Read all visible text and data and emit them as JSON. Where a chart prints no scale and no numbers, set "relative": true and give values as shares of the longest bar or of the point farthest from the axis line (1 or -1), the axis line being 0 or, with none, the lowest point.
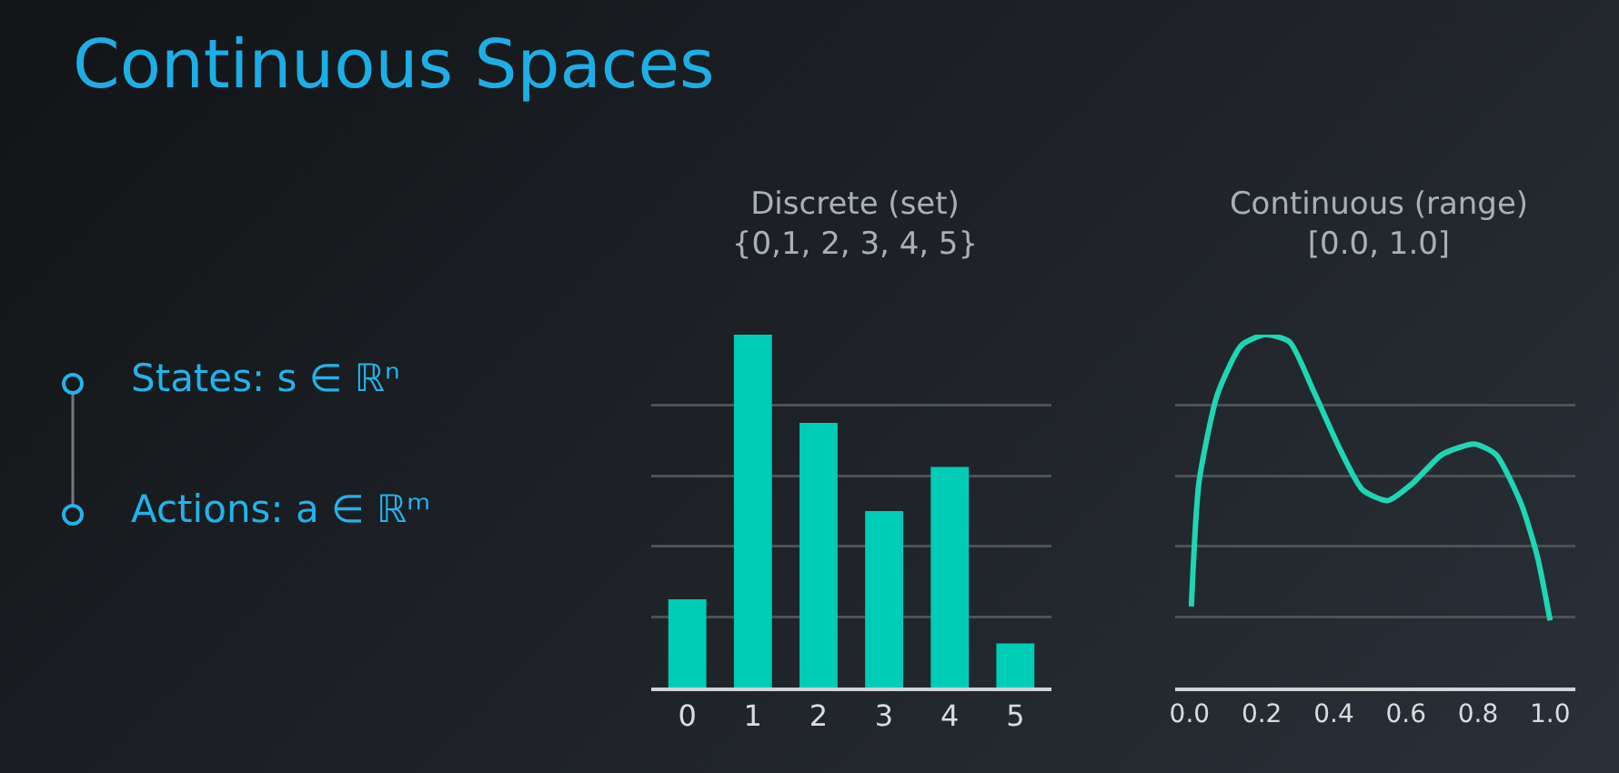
{
  "chart_data": [
    {
      "type": "other",
      "title": "Continuous Spaces",
      "annotations": [
        "States: s ∈ ℝⁿ",
        "Actions: a ∈ ℝᵐ"
      ]
    },
    {
      "type": "bar",
      "title": "Discrete (set)",
      "subtitle": "{0,1, 2, 3, 4, 5}",
      "categories": [
        "0",
        "1",
        "2",
        "3",
        "4",
        "5"
      ],
      "relative": true,
      "grid": "y",
      "series": [
        {
          "color": "#00cdb5",
          "values": [
            0.25,
            1,
            0.75,
            0.5,
            0.625,
            0.125
          ]
        }
      ]
    },
    {
      "type": "line",
      "title": "Continuous (range)",
      "subtitle": "[0.0, 1.0]",
      "relative": true,
      "grid": "y",
      "xlim": [
        -0.04,
        1.07
      ],
      "xticks": [
        {
          "value": 0,
          "label": "0.0"
        },
        {
          "value": 0.2,
          "label": "0.2"
        },
        {
          "value": 0.4,
          "label": "0.4"
        },
        {
          "value": 0.6,
          "label": "0.6"
        },
        {
          "value": 0.8,
          "label": "0.8"
        },
        {
          "value": 1,
          "label": "1.0"
        }
      ],
      "series": [
        {
          "color": "#1fd6b4",
          "x": [
            0.005,
            0.026,
            0.077,
            0.144,
            0.21,
            0.277,
            0.344,
            0.415,
            0.48,
            0.55,
            0.62,
            0.7,
            0.79,
            0.85,
            0.92,
            0.965,
            1.0
          ],
          "values": [
            0.23,
            0.58,
            0.83,
            0.97,
            1,
            0.98,
            0.84,
            0.68,
            0.56,
            0.53,
            0.58,
            0.66,
            0.69,
            0.66,
            0.52,
            0.37,
            0.19
          ]
        }
      ]
    }
  ]
}
